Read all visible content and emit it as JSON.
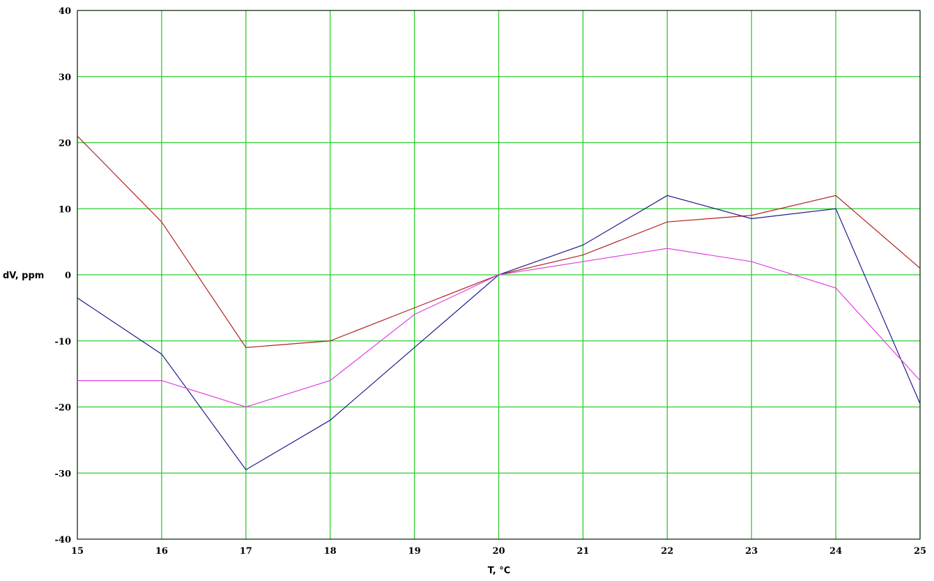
{
  "chart_data": {
    "type": "line",
    "title": "",
    "xlabel": "T, °C",
    "ylabel": "dV, ppm",
    "xlim": [
      15,
      25
    ],
    "ylim": [
      -40,
      40
    ],
    "x_ticks": [
      "15",
      "16",
      "17",
      "18",
      "19",
      "20",
      "21",
      "22",
      "23",
      "24",
      "25"
    ],
    "y_ticks": [
      "40",
      "30",
      "20",
      "10",
      "0",
      "-10",
      "-20",
      "-30",
      "-40"
    ],
    "grid": true,
    "grid_color": "#2ecc2e",
    "legend": "none",
    "x": [
      15,
      16,
      17,
      18,
      19,
      20,
      21,
      22,
      23,
      24,
      25
    ],
    "series": [
      {
        "color": "#b22222",
        "values": [
          21,
          8,
          -11,
          -10,
          -5,
          0,
          3,
          8,
          9,
          12,
          1
        ]
      },
      {
        "color": "#1c1c8c",
        "values": [
          -3.5,
          -12,
          -29.5,
          -22,
          -11,
          0,
          4.5,
          12,
          8.5,
          10,
          -19.5
        ]
      },
      {
        "color": "#e040e0",
        "values": [
          -16,
          -16,
          -20,
          -16,
          -6,
          0,
          2,
          4,
          2,
          -2,
          -16
        ]
      }
    ]
  }
}
